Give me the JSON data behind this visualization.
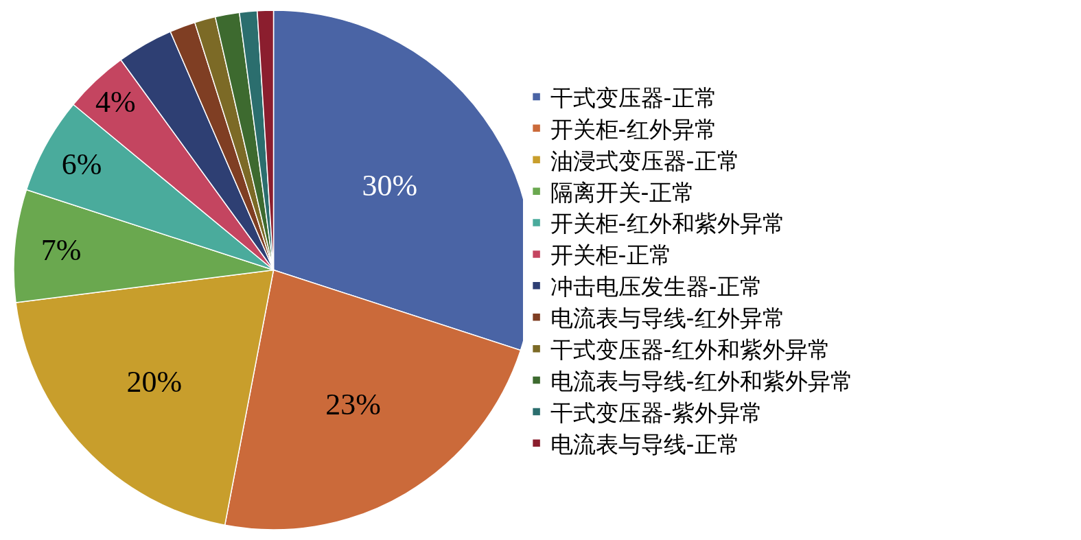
{
  "chart_data": {
    "type": "pie",
    "categories": [
      "干式变压器-正常",
      "开关柜-红外异常",
      "油浸式变压器-正常",
      "隔离开关-正常",
      "开关柜-红外和紫外异常",
      "开关柜-正常",
      "冲击电压发生器-正常",
      "电流表与导线-红外异常",
      "干式变压器-红外和紫外异常",
      "电流表与导线-红外和紫外异常",
      "干式变压器-紫外异常",
      "电流表与导线-正常"
    ],
    "values": [
      30,
      23,
      20,
      7,
      6,
      4,
      3.5,
      1.6,
      1.3,
      1.5,
      1.1,
      1.0
    ],
    "value_labels": [
      "30%",
      "23%",
      "20%",
      "7%",
      "6%",
      "4%",
      null,
      null,
      null,
      null,
      null,
      null
    ],
    "colors": [
      "#4a64a5",
      "#cb6a3a",
      "#c89e2c",
      "#6aa84f",
      "#4aab9c",
      "#c44560",
      "#2e3f73",
      "#7f3e23",
      "#7c6a26",
      "#3d6a2f",
      "#2b6e6e",
      "#8b1e2e"
    ],
    "legend": "right"
  }
}
